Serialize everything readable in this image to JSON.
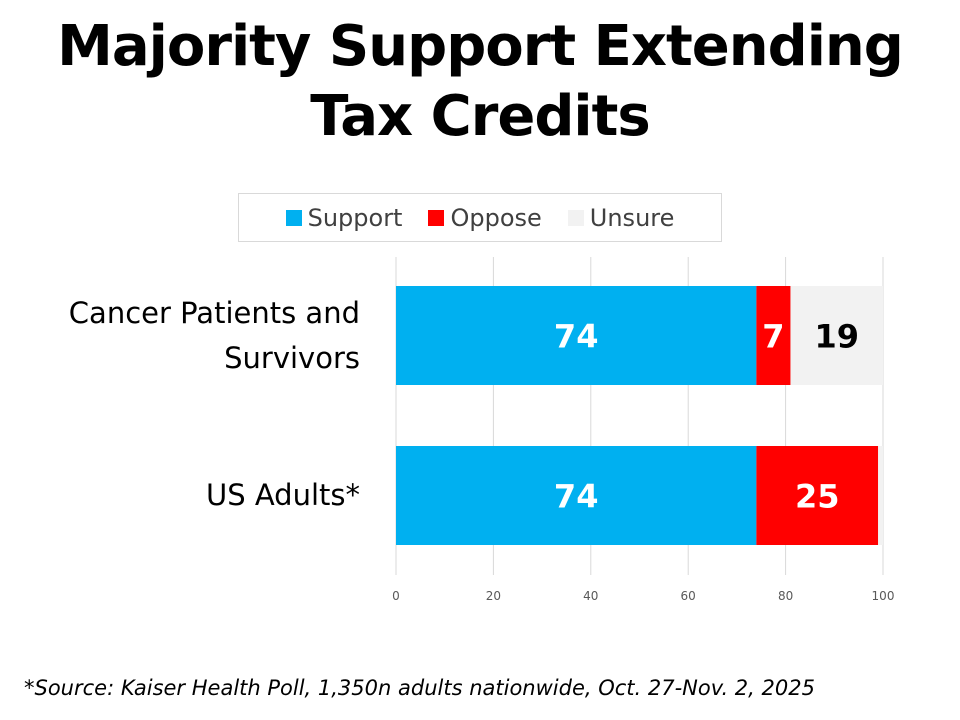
{
  "chart_data": {
    "type": "bar",
    "orientation": "horizontal",
    "stacked": true,
    "title": "Majority Support Extending Tax Credits",
    "categories": [
      "Cancer Patients and Survivors",
      "US Adults*"
    ],
    "series": [
      {
        "name": "Support",
        "color": "#00B0F0",
        "values": [
          74,
          74
        ],
        "label_color": "#ffffff"
      },
      {
        "name": "Oppose",
        "color": "#FF0000",
        "values": [
          7,
          25
        ],
        "label_color": "#ffffff"
      },
      {
        "name": "Unsure",
        "color": "#F2F2F2",
        "values": [
          19,
          1
        ],
        "label_color": "#000000"
      }
    ],
    "data_labels": [
      [
        "74",
        "7",
        "19"
      ],
      [
        "74",
        "25",
        ""
      ]
    ],
    "xlim": [
      0,
      100
    ],
    "xticks": [
      "0",
      "20",
      "40",
      "60",
      "80",
      "100"
    ],
    "grid": true,
    "legend": "top"
  },
  "footnote": "*Source: Kaiser Health Poll, 1,350n adults nationwide, Oct. 27-Nov. 2, 2025"
}
